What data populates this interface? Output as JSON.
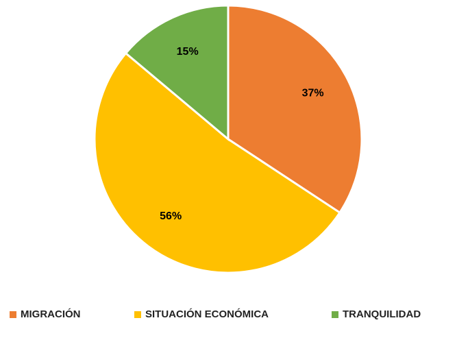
{
  "chart_data": {
    "type": "pie",
    "categories": [
      "MIGRACIÓN",
      "SITUACIÓN ECONÓMICA",
      "TRANQUILIDAD"
    ],
    "values": [
      37,
      56,
      15
    ],
    "value_labels": [
      "37%",
      "56%",
      "15%"
    ],
    "colors": [
      "#ED7D31",
      "#FFC000",
      "#70AD47"
    ],
    "legend": "bottom"
  }
}
